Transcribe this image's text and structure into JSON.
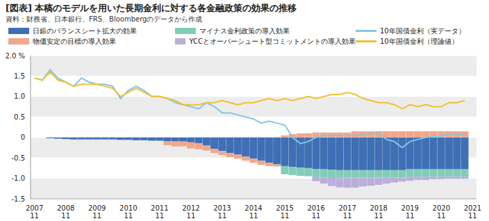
{
  "chart_data": {
    "type": "bar",
    "title": "[図表] 本稿のモデルを用いた長期金利に対する各金融政策の効果の推移",
    "subtitle": "資料：財務省、日本銀行、FRS、Bloombergのデータから作成",
    "stacked": true,
    "grid": true,
    "categories": [
      "2007\n11",
      null,
      null,
      null,
      "2008\n11",
      null,
      null,
      null,
      "2009\n11",
      null,
      null,
      null,
      "2010\n11",
      null,
      null,
      null,
      "2011\n11",
      null,
      null,
      null,
      "2012\n11",
      null,
      null,
      null,
      "2013\n11",
      null,
      null,
      null,
      "2014\n11",
      null,
      null,
      null,
      "2015\n11",
      null,
      null,
      null,
      "2016\n11",
      null,
      null,
      null,
      "2017\n11",
      null,
      null,
      null,
      "2018\n11",
      null,
      null,
      null,
      "2019\n11",
      null,
      null,
      null,
      "2020\n11",
      null,
      null,
      null,
      "2021\n11"
    ],
    "ylim": [
      -1.5,
      2.0
    ],
    "yticks": [
      {
        "value": -1.5,
        "label": "-1.5"
      },
      {
        "value": -1.0,
        "label": "-1.0"
      },
      {
        "value": -0.5,
        "label": "-0.5"
      },
      0,
      {
        "value": 0.5,
        "label": "0.5"
      },
      {
        "value": 1.0,
        "label": "1.0"
      },
      {
        "value": 1.5,
        "label": "1.5"
      },
      {
        "value": 2.0,
        "label": "2.0 %"
      }
    ],
    "series": [
      {
        "name": "日銀のバランスシート拡大の効果",
        "type": "bar",
        "color": "#3f6fb5",
        "values": [
          null,
          null,
          -0.02,
          -0.03,
          -0.04,
          -0.05,
          -0.05,
          -0.05,
          -0.05,
          -0.05,
          -0.05,
          -0.06,
          -0.06,
          -0.07,
          -0.07,
          -0.08,
          -0.08,
          -0.09,
          -0.1,
          -0.1,
          -0.12,
          -0.14,
          -0.2,
          -0.28,
          -0.33,
          -0.38,
          -0.42,
          -0.47,
          -0.52,
          -0.57,
          -0.62,
          -0.66,
          -0.7,
          -0.72,
          -0.74,
          -0.75,
          -0.77,
          -0.78,
          -0.79,
          -0.8,
          -0.8,
          -0.8,
          -0.8,
          -0.8,
          -0.8,
          -0.8,
          -0.8,
          -0.8,
          -0.78,
          -0.78,
          -0.78,
          -0.78,
          -0.78,
          -0.78,
          -0.78,
          -0.78,
          null
        ]
      },
      {
        "name": "物価安定の目標の導入効果",
        "type": "bar",
        "color": "#f2a68a",
        "values": [
          null,
          null,
          null,
          null,
          null,
          null,
          null,
          null,
          null,
          null,
          null,
          null,
          null,
          null,
          null,
          null,
          null,
          -0.1,
          -0.12,
          -0.12,
          -0.15,
          -0.15,
          -0.12,
          -0.1,
          -0.1,
          -0.1,
          -0.1,
          -0.1,
          -0.1,
          -0.1,
          -0.08,
          -0.05,
          0.05,
          0.08,
          0.1,
          0.1,
          0.12,
          0.12,
          0.12,
          0.12,
          0.12,
          0.15,
          0.15,
          0.15,
          0.15,
          0.15,
          0.15,
          0.15,
          0.15,
          0.15,
          0.15,
          0.15,
          0.15,
          0.15,
          0.15,
          0.15,
          null
        ]
      },
      {
        "name": "マイナス金利政策の導入効果",
        "type": "bar",
        "color": "#82cdb9",
        "values": [
          null,
          null,
          null,
          null,
          null,
          null,
          null,
          null,
          null,
          null,
          null,
          null,
          null,
          null,
          null,
          null,
          null,
          null,
          null,
          null,
          null,
          null,
          null,
          null,
          null,
          null,
          null,
          null,
          null,
          null,
          null,
          null,
          -0.2,
          -0.2,
          -0.2,
          -0.2,
          -0.2,
          -0.2,
          -0.2,
          -0.2,
          -0.18,
          -0.18,
          -0.18,
          -0.18,
          -0.18,
          -0.18,
          -0.18,
          -0.18,
          -0.18,
          -0.18,
          -0.18,
          -0.18,
          -0.18,
          -0.18,
          -0.18,
          -0.18,
          null
        ]
      },
      {
        "name": "YCCとオーバーシュート型コミットメントの導入効果",
        "type": "bar",
        "color": "#bcaedb",
        "values": [
          null,
          null,
          null,
          null,
          null,
          null,
          null,
          null,
          null,
          null,
          null,
          null,
          null,
          null,
          null,
          null,
          null,
          null,
          null,
          null,
          null,
          null,
          null,
          null,
          null,
          null,
          null,
          null,
          null,
          null,
          null,
          null,
          null,
          null,
          null,
          null,
          -0.1,
          -0.15,
          -0.2,
          -0.22,
          -0.25,
          -0.25,
          -0.22,
          -0.2,
          -0.18,
          -0.15,
          -0.12,
          -0.1,
          -0.1,
          -0.08,
          -0.08,
          -0.06,
          -0.06,
          -0.05,
          -0.05,
          -0.05,
          null
        ]
      },
      {
        "name": "10年国債金利（実データ）",
        "type": "line",
        "color": "#7ec8e6",
        "values": [
          1.45,
          1.4,
          1.65,
          1.45,
          1.35,
          1.25,
          1.45,
          1.35,
          1.3,
          1.3,
          1.25,
          0.95,
          1.15,
          1.25,
          1.15,
          1.0,
          1.0,
          0.95,
          0.85,
          0.8,
          0.75,
          0.7,
          0.85,
          0.75,
          0.6,
          0.6,
          0.55,
          0.5,
          0.45,
          0.35,
          0.4,
          0.35,
          0.3,
          0.0,
          -0.15,
          -0.1,
          0.0,
          0.05,
          0.05,
          0.05,
          0.05,
          0.05,
          0.05,
          0.1,
          0.1,
          -0.05,
          -0.1,
          -0.25,
          -0.1,
          -0.05,
          0.0,
          0.03,
          0.02,
          0.1,
          0.08,
          0.05,
          null
        ]
      },
      {
        "name": "10年国債金利（理論値）",
        "type": "line",
        "color": "#f2c12e",
        "values": [
          1.45,
          1.4,
          1.6,
          1.4,
          1.35,
          1.25,
          1.3,
          1.3,
          1.3,
          1.25,
          1.2,
          1.0,
          1.1,
          1.2,
          1.1,
          1.0,
          1.0,
          0.95,
          0.9,
          0.8,
          0.8,
          0.8,
          0.85,
          0.85,
          0.9,
          0.85,
          0.8,
          0.85,
          0.85,
          0.9,
          0.95,
          0.9,
          0.95,
          0.9,
          0.95,
          1.0,
          0.95,
          1.0,
          1.05,
          1.05,
          1.1,
          1.05,
          0.95,
          0.9,
          0.85,
          0.85,
          0.8,
          0.7,
          0.8,
          0.75,
          0.8,
          0.75,
          0.75,
          0.85,
          0.85,
          0.9,
          null
        ]
      }
    ]
  }
}
